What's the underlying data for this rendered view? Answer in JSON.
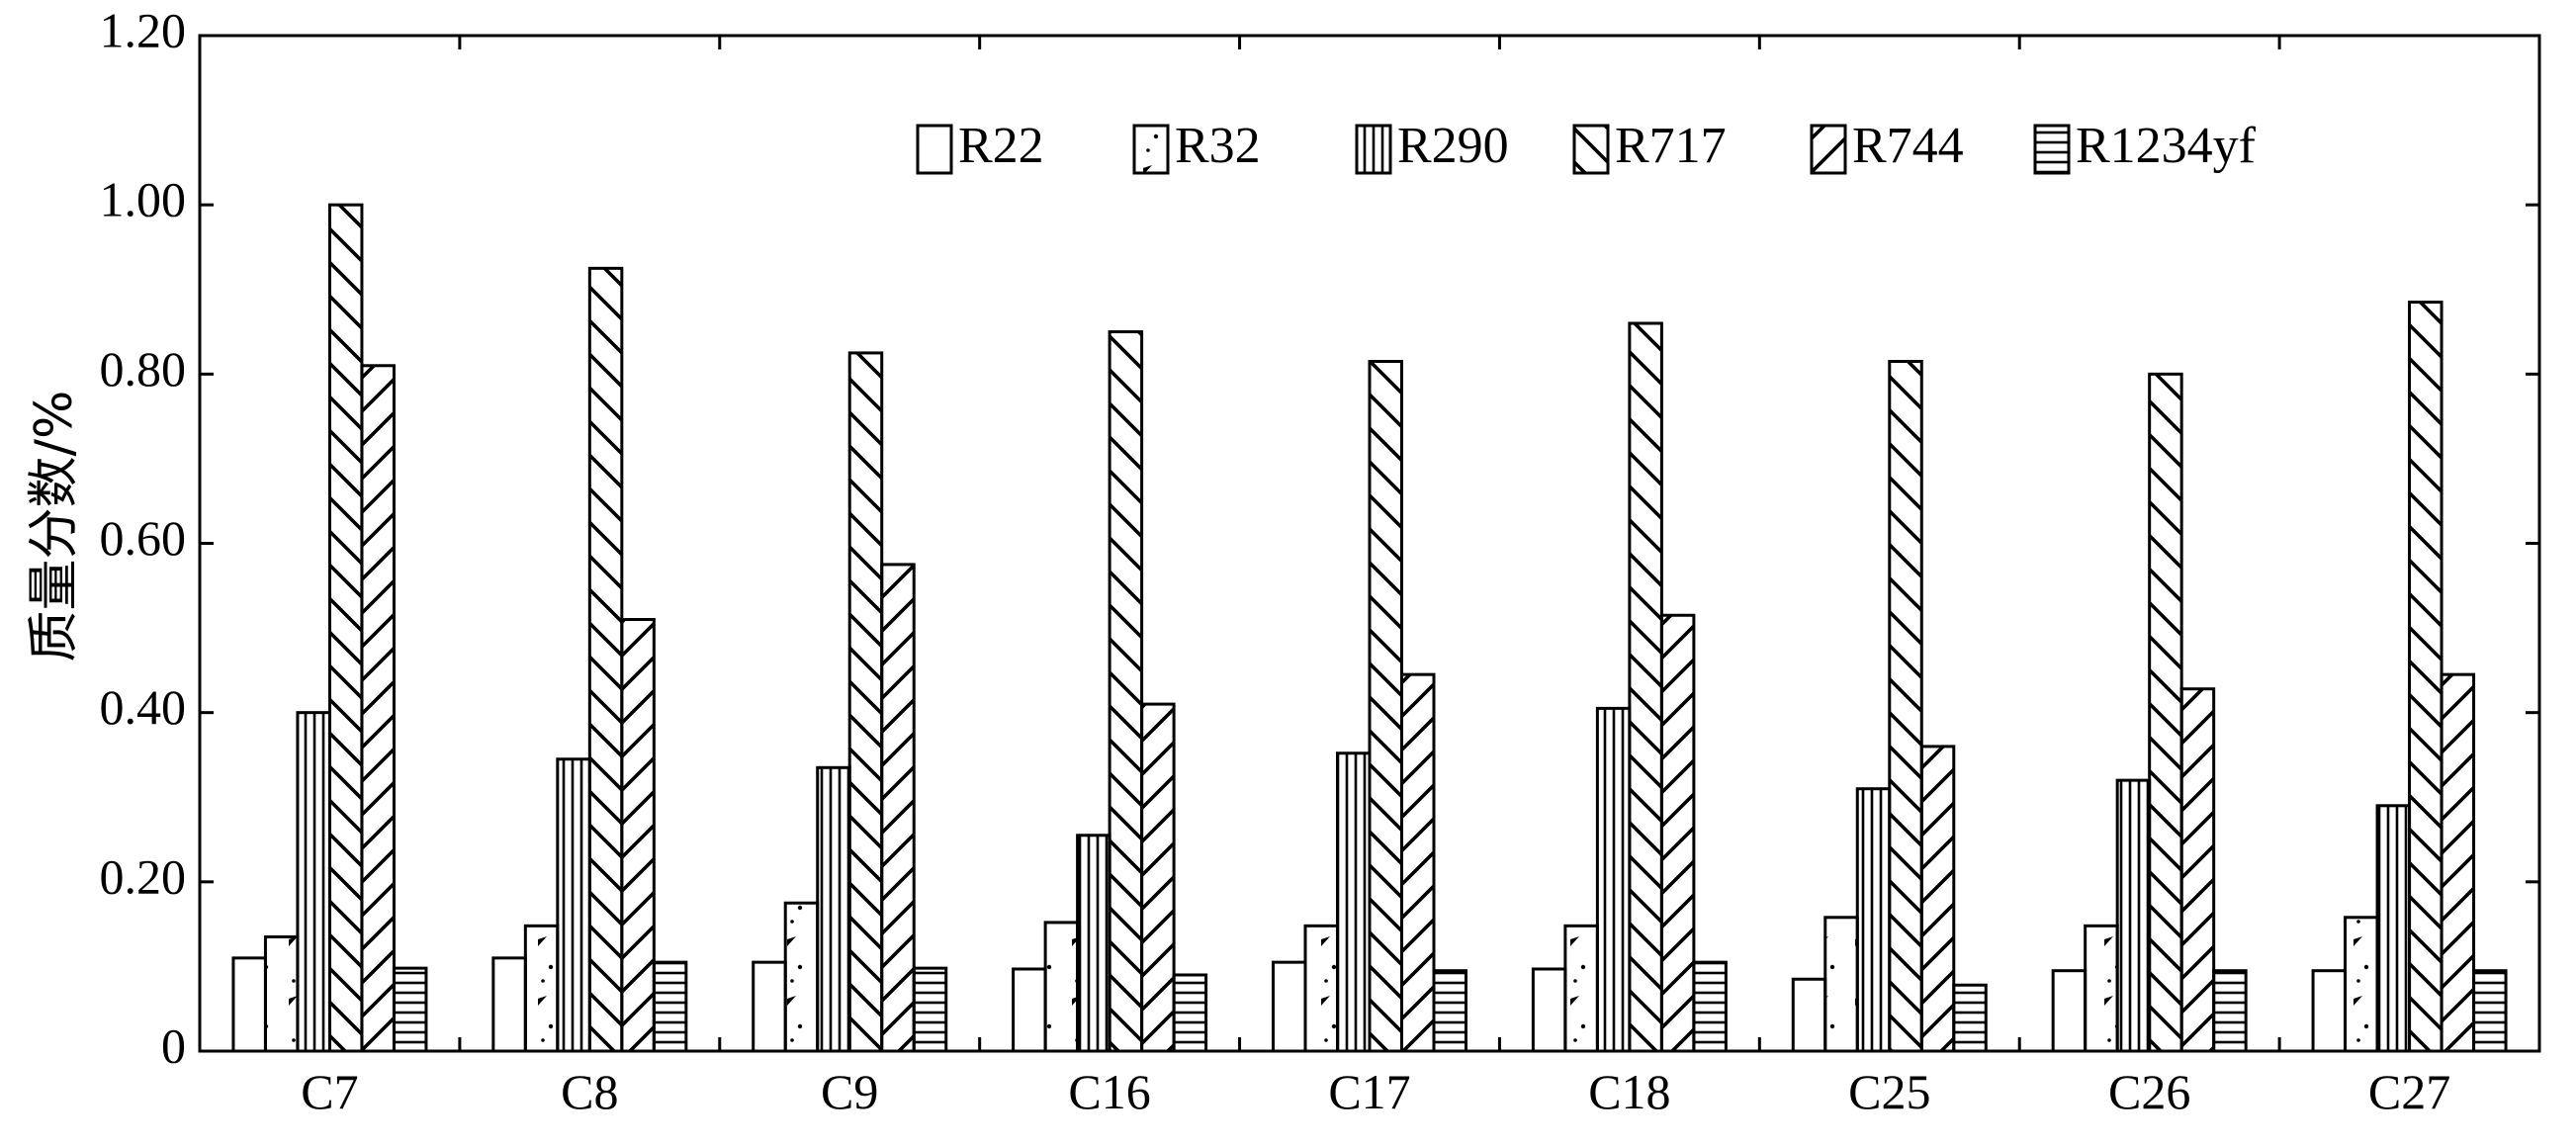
{
  "chart_data": {
    "type": "bar",
    "title": "",
    "xlabel": "",
    "ylabel": "质量分数/%",
    "ylim": [
      0,
      1.2
    ],
    "yticks": [
      "0",
      "0.20",
      "0.40",
      "0.60",
      "0.80",
      "1.00",
      "1.20"
    ],
    "grid": false,
    "legend_position": "top-right",
    "categories": [
      "C7",
      "C8",
      "C9",
      "C16",
      "C17",
      "C18",
      "C25",
      "C26",
      "C27"
    ],
    "series": [
      {
        "name": "R22",
        "pattern": "none",
        "values": [
          0.11,
          0.11,
          0.105,
          0.097,
          0.105,
          0.097,
          0.085,
          0.095,
          0.095
        ]
      },
      {
        "name": "R32",
        "pattern": "dots",
        "values": [
          0.135,
          0.148,
          0.175,
          0.152,
          0.148,
          0.148,
          0.158,
          0.148,
          0.158
        ]
      },
      {
        "name": "R290",
        "pattern": "vertical",
        "values": [
          0.4,
          0.345,
          0.335,
          0.255,
          0.352,
          0.405,
          0.31,
          0.32,
          0.29
        ]
      },
      {
        "name": "R717",
        "pattern": "diag-back",
        "values": [
          1.0,
          0.925,
          0.825,
          0.85,
          0.815,
          0.86,
          0.815,
          0.8,
          0.885
        ]
      },
      {
        "name": "R744",
        "pattern": "diag-fwd",
        "values": [
          0.81,
          0.51,
          0.575,
          0.41,
          0.445,
          0.515,
          0.36,
          0.428,
          0.445
        ]
      },
      {
        "name": "R1234yf",
        "pattern": "horizontal",
        "values": [
          0.098,
          0.105,
          0.098,
          0.09,
          0.095,
          0.105,
          0.078,
          0.095,
          0.095
        ]
      }
    ]
  }
}
